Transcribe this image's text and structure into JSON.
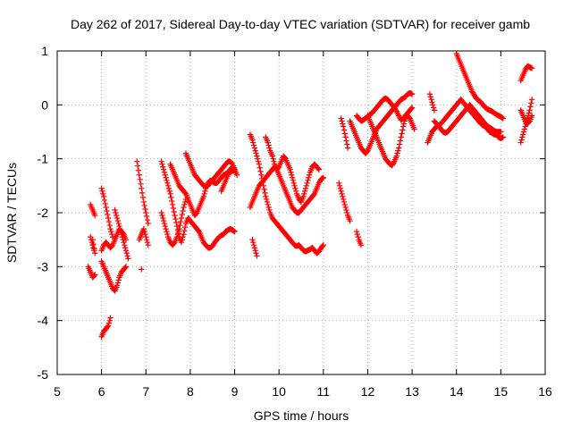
{
  "chart_data": {
    "type": "scatter",
    "title": "Day 262 of 2017, Sidereal Day-to-day VTEC variation (SDTVAR) for receiver gamb",
    "xlabel": "GPS time / hours",
    "ylabel": "SDTVAR / TECUs",
    "xlim": [
      5,
      16
    ],
    "ylim": [
      -5,
      1
    ],
    "xticks": [
      "5",
      "6",
      "7",
      "8",
      "9",
      "10",
      "11",
      "12",
      "13",
      "14",
      "15",
      "16"
    ],
    "yticks": [
      "1",
      "0",
      "-1",
      "-2",
      "-3",
      "-4",
      "-5"
    ],
    "grid": true,
    "marker": "+",
    "marker_color": "#ff0000",
    "series": [
      {
        "name": "s1",
        "x": [
          5.75,
          5.8,
          5.85
        ],
        "y": [
          -1.85,
          -1.95,
          -2.05
        ]
      },
      {
        "name": "s2",
        "x": [
          5.75,
          5.8,
          5.85,
          5.8
        ],
        "y": [
          -2.45,
          -2.6,
          -2.75,
          -2.5
        ]
      },
      {
        "name": "s3",
        "x": [
          5.7,
          5.75,
          5.8,
          5.85
        ],
        "y": [
          -3.0,
          -3.1,
          -3.2,
          -3.15
        ]
      },
      {
        "name": "s4",
        "x": [
          6.0,
          6.05,
          6.1,
          6.15,
          6.2,
          6.25
        ],
        "y": [
          -1.55,
          -1.7,
          -1.9,
          -2.1,
          -2.3,
          -2.45
        ]
      },
      {
        "name": "s5",
        "x": [
          6.0,
          6.05,
          6.1,
          6.15,
          6.2,
          6.25,
          6.3,
          6.35,
          6.4,
          6.45,
          6.5,
          6.55
        ],
        "y": [
          -2.7,
          -2.6,
          -2.55,
          -2.6,
          -2.65,
          -2.6,
          -2.5,
          -2.4,
          -2.3,
          -2.35,
          -2.4,
          -2.5
        ]
      },
      {
        "name": "s6",
        "x": [
          6.0,
          6.05,
          6.1,
          6.15,
          6.2,
          6.25,
          6.3,
          6.35,
          6.4,
          6.45,
          6.5,
          6.55
        ],
        "y": [
          -2.9,
          -3.0,
          -3.1,
          -3.2,
          -3.3,
          -3.4,
          -3.45,
          -3.35,
          -3.2,
          -3.1,
          -3.05,
          -3.0
        ]
      },
      {
        "name": "s7",
        "x": [
          6.0,
          6.05,
          6.1,
          6.15,
          6.2
        ],
        "y": [
          -4.3,
          -4.2,
          -4.15,
          -4.1,
          -3.95
        ]
      },
      {
        "name": "s8",
        "x": [
          6.3,
          6.35,
          6.4,
          6.45,
          6.5,
          6.55,
          6.6
        ],
        "y": [
          -1.95,
          -2.1,
          -2.25,
          -2.4,
          -2.55,
          -2.7,
          -2.85
        ]
      },
      {
        "name": "s9",
        "x": [
          6.8,
          6.85,
          6.9,
          6.95,
          7.0,
          7.05
        ],
        "y": [
          -1.05,
          -1.3,
          -1.55,
          -1.8,
          -2.0,
          -2.2
        ]
      },
      {
        "name": "s10",
        "x": [
          6.85,
          6.9,
          6.95,
          7.0,
          7.05
        ],
        "y": [
          -2.5,
          -2.4,
          -2.3,
          -2.45,
          -2.6
        ]
      },
      {
        "name": "s11",
        "x": [
          6.9
        ],
        "y": [
          -3.05
        ]
      },
      {
        "name": "s12",
        "x": [
          7.35,
          7.4,
          7.45,
          7.5,
          7.55,
          7.6,
          7.65,
          7.7,
          7.75,
          7.8,
          7.85,
          7.9,
          7.95,
          8.0,
          8.05,
          8.1,
          8.15,
          8.2,
          8.25,
          8.3,
          8.35,
          8.4,
          8.45,
          8.5,
          8.55,
          8.6,
          8.65,
          8.7,
          8.75,
          8.8,
          8.85,
          8.9,
          8.95,
          9.0
        ],
        "y": [
          -1.05,
          -1.2,
          -1.35,
          -1.5,
          -1.65,
          -1.85,
          -2.05,
          -2.25,
          -2.45,
          -2.55,
          -2.4,
          -2.2,
          -2.1,
          -2.15,
          -2.2,
          -2.25,
          -2.3,
          -2.35,
          -2.45,
          -2.55,
          -2.6,
          -2.65,
          -2.65,
          -2.62,
          -2.55,
          -2.5,
          -2.45,
          -2.42,
          -2.4,
          -2.35,
          -2.32,
          -2.3,
          -2.32,
          -2.35
        ]
      },
      {
        "name": "s13",
        "x": [
          7.35,
          7.4,
          7.45,
          7.5,
          7.55,
          7.6,
          7.65,
          7.7,
          7.75,
          7.8,
          7.85,
          7.9
        ],
        "y": [
          -2.0,
          -2.15,
          -2.3,
          -2.45,
          -2.55,
          -2.6,
          -2.55,
          -2.45,
          -2.3,
          -2.1,
          -1.9,
          -1.75
        ]
      },
      {
        "name": "s14",
        "x": [
          7.55,
          7.6,
          7.65,
          7.7,
          7.75,
          7.8,
          7.85,
          7.9,
          7.95,
          8.0,
          8.05,
          8.1,
          8.15,
          8.2,
          8.25,
          8.3,
          8.35,
          8.4,
          8.45,
          8.5,
          8.55,
          8.6,
          8.65,
          8.7,
          8.75,
          8.8,
          8.85,
          8.9,
          8.95,
          9.0
        ],
        "y": [
          -1.1,
          -1.2,
          -1.3,
          -1.4,
          -1.5,
          -1.55,
          -1.6,
          -1.65,
          -1.75,
          -1.85,
          -1.95,
          -2.05,
          -2.0,
          -1.9,
          -1.8,
          -1.7,
          -1.55,
          -1.45,
          -1.4,
          -1.42,
          -1.45,
          -1.45,
          -1.4,
          -1.35,
          -1.3,
          -1.28,
          -1.25,
          -1.25,
          -1.22,
          -1.2
        ]
      },
      {
        "name": "s15",
        "x": [
          7.9,
          7.95,
          8.0,
          8.05,
          8.1,
          8.15,
          8.2,
          8.25,
          8.3,
          8.35,
          8.4,
          8.45,
          8.5,
          8.55,
          8.6,
          8.65,
          8.7,
          8.75,
          8.8,
          8.85,
          8.9,
          8.95,
          9.0
        ],
        "y": [
          -0.9,
          -1.0,
          -1.1,
          -1.2,
          -1.3,
          -1.35,
          -1.4,
          -1.45,
          -1.5,
          -1.52,
          -1.5,
          -1.45,
          -1.4,
          -1.35,
          -1.3,
          -1.25,
          -1.2,
          -1.15,
          -1.1,
          -1.05,
          -1.05,
          -1.1,
          -1.2
        ]
      },
      {
        "name": "s16",
        "x": [
          8.7,
          8.75,
          8.8,
          8.85,
          8.9,
          8.95,
          9.0,
          9.05
        ],
        "y": [
          -1.6,
          -1.5,
          -1.4,
          -1.3,
          -1.2,
          -1.15,
          -1.2,
          -1.3
        ]
      },
      {
        "name": "s17",
        "x": [
          9.35,
          9.4,
          9.45,
          9.5,
          9.55,
          9.6,
          9.65,
          9.7,
          9.75,
          9.8,
          9.85,
          9.9,
          9.95,
          10.0,
          10.05,
          10.1,
          10.15,
          10.2,
          10.25,
          10.3,
          10.35,
          10.4,
          10.45,
          10.5,
          10.55,
          10.6,
          10.65,
          10.7,
          10.75,
          10.8,
          10.85,
          10.9,
          10.95,
          11.0
        ],
        "y": [
          -0.55,
          -0.65,
          -0.8,
          -0.95,
          -1.1,
          -1.3,
          -1.5,
          -1.7,
          -1.85,
          -2.0,
          -2.1,
          -2.15,
          -2.2,
          -2.25,
          -2.3,
          -2.35,
          -2.4,
          -2.45,
          -2.5,
          -2.55,
          -2.6,
          -2.62,
          -2.6,
          -2.65,
          -2.7,
          -2.72,
          -2.7,
          -2.68,
          -2.65,
          -2.7,
          -2.75,
          -2.72,
          -2.65,
          -2.6
        ]
      },
      {
        "name": "s18",
        "x": [
          9.35,
          9.4,
          9.45,
          9.5,
          9.55,
          9.6,
          9.65,
          9.7,
          9.75,
          9.8,
          9.85,
          9.9,
          9.95,
          10.0,
          10.05,
          10.1,
          10.15,
          10.2,
          10.25,
          10.3,
          10.35,
          10.4,
          10.45,
          10.5,
          10.55,
          10.6,
          10.65,
          10.7,
          10.75,
          10.8,
          10.85,
          10.9,
          10.95,
          11.0
        ],
        "y": [
          -1.9,
          -1.8,
          -1.7,
          -1.6,
          -1.5,
          -1.45,
          -1.4,
          -1.35,
          -1.3,
          -1.25,
          -1.2,
          -1.15,
          -1.2,
          -1.3,
          -1.4,
          -1.5,
          -1.6,
          -1.7,
          -1.8,
          -1.9,
          -1.95,
          -2.0,
          -2.0,
          -1.95,
          -1.9,
          -1.85,
          -1.8,
          -1.75,
          -1.7,
          -1.65,
          -1.55,
          -1.45,
          -1.38,
          -1.35
        ]
      },
      {
        "name": "s19",
        "x": [
          9.7,
          9.75,
          9.8,
          9.85,
          9.9,
          9.95,
          10.0,
          10.05,
          10.1,
          10.15,
          10.2,
          10.25,
          10.3,
          10.35,
          10.4,
          10.45,
          10.5,
          10.55,
          10.6,
          10.65,
          10.7,
          10.75,
          10.8,
          10.85,
          10.9
        ],
        "y": [
          -0.6,
          -0.7,
          -0.85,
          -0.95,
          -1.1,
          -1.2,
          -1.15,
          -1.05,
          -0.95,
          -1.0,
          -1.1,
          -1.2,
          -1.35,
          -1.5,
          -1.65,
          -1.75,
          -1.8,
          -1.7,
          -1.55,
          -1.4,
          -1.25,
          -1.15,
          -1.1,
          -1.15,
          -1.2
        ]
      },
      {
        "name": "s20",
        "x": [
          9.4,
          9.45,
          9.5
        ],
        "y": [
          -2.5,
          -2.65,
          -2.8
        ]
      },
      {
        "name": "s21",
        "x": [
          11.35,
          11.4,
          11.45,
          11.5,
          11.55,
          11.6
        ],
        "y": [
          -1.45,
          -1.6,
          -1.75,
          -1.9,
          -2.05,
          -2.15
        ]
      },
      {
        "name": "s22",
        "x": [
          11.4,
          11.45,
          11.5,
          11.55
        ],
        "y": [
          -0.25,
          -0.4,
          -0.6,
          -0.8
        ]
      },
      {
        "name": "s23",
        "x": [
          11.6,
          11.65,
          11.7,
          11.75,
          11.8,
          11.85,
          11.9,
          11.95,
          12.0,
          12.05,
          12.1,
          12.15,
          12.2,
          12.25,
          12.3,
          12.35,
          12.4,
          12.45,
          12.5,
          12.55,
          12.6,
          12.65,
          12.7,
          12.75,
          12.8,
          12.85,
          12.9,
          12.95,
          13.0
        ],
        "y": [
          -0.3,
          -0.4,
          -0.5,
          -0.6,
          -0.7,
          -0.8,
          -0.85,
          -0.9,
          -0.85,
          -0.75,
          -0.65,
          -0.55,
          -0.45,
          -0.4,
          -0.35,
          -0.3,
          -0.25,
          -0.2,
          -0.15,
          -0.1,
          -0.05,
          0.0,
          0.05,
          0.1,
          0.12,
          0.15,
          0.2,
          0.22,
          0.2
        ]
      },
      {
        "name": "s24",
        "x": [
          11.75,
          11.8,
          11.85,
          11.9,
          11.95,
          12.0,
          12.05,
          12.1,
          12.15,
          12.2,
          12.25,
          12.3,
          12.35,
          12.4,
          12.45,
          12.5,
          12.55,
          12.6,
          12.65,
          12.7,
          12.75,
          12.8,
          12.85,
          12.9,
          12.95,
          13.0
        ],
        "y": [
          -0.2,
          -0.25,
          -0.3,
          -0.28,
          -0.25,
          -0.22,
          -0.18,
          -0.15,
          -0.1,
          -0.05,
          0.0,
          0.05,
          0.1,
          0.12,
          0.1,
          0.05,
          0.0,
          -0.05,
          -0.12,
          -0.2,
          -0.28,
          -0.25,
          -0.2,
          -0.15,
          -0.1,
          -0.05
        ]
      },
      {
        "name": "s25",
        "x": [
          12.0,
          12.05,
          12.1,
          12.15,
          12.2,
          12.25,
          12.3,
          12.35,
          12.4,
          12.45,
          12.5,
          12.55,
          12.6,
          12.65,
          12.7,
          12.75,
          12.8,
          12.85,
          12.9,
          12.95,
          13.0,
          13.05
        ],
        "y": [
          -0.2,
          -0.3,
          -0.4,
          -0.5,
          -0.6,
          -0.7,
          -0.8,
          -0.9,
          -1.0,
          -1.05,
          -1.1,
          -1.12,
          -1.05,
          -0.95,
          -0.8,
          -0.6,
          -0.4,
          -0.25,
          -0.2,
          -0.25,
          -0.35,
          -0.45
        ]
      },
      {
        "name": "s26",
        "x": [
          11.75,
          11.8,
          11.85
        ],
        "y": [
          -2.35,
          -2.5,
          -2.6
        ]
      },
      {
        "name": "s27",
        "x": [
          13.35,
          13.4,
          13.45,
          13.5,
          13.55,
          13.6,
          13.65,
          13.7,
          13.75,
          13.8,
          13.85,
          13.9,
          13.95,
          14.0,
          14.05,
          14.1,
          14.15,
          14.2,
          14.25,
          14.3,
          14.35,
          14.4,
          14.45,
          14.5,
          14.55,
          14.6,
          14.65,
          14.7,
          14.75,
          14.8,
          14.85,
          14.9,
          14.95,
          15.0,
          15.05
        ],
        "y": [
          -0.7,
          -0.6,
          -0.5,
          -0.45,
          -0.4,
          -0.38,
          -0.35,
          -0.3,
          -0.25,
          -0.2,
          -0.15,
          -0.1,
          -0.05,
          0.0,
          0.05,
          0.1,
          0.05,
          0.0,
          -0.05,
          -0.1,
          -0.15,
          -0.2,
          -0.25,
          -0.3,
          -0.35,
          -0.38,
          -0.4,
          -0.45,
          -0.5,
          -0.52,
          -0.55,
          -0.55,
          -0.6,
          -0.62,
          -0.6
        ]
      },
      {
        "name": "s28",
        "x": [
          13.5,
          13.55,
          13.6,
          13.65,
          13.7,
          13.75,
          13.8,
          13.85,
          13.9,
          13.95,
          14.0,
          14.05,
          14.1,
          14.15,
          14.2,
          14.25,
          14.3,
          14.35,
          14.4,
          14.45,
          14.5,
          14.55,
          14.6,
          14.65,
          14.7,
          14.75,
          14.8,
          14.85,
          14.9,
          14.95,
          15.0
        ],
        "y": [
          -0.3,
          -0.35,
          -0.4,
          -0.45,
          -0.5,
          -0.52,
          -0.5,
          -0.45,
          -0.4,
          -0.35,
          -0.3,
          -0.25,
          -0.2,
          -0.15,
          -0.1,
          -0.05,
          0.0,
          -0.05,
          -0.1,
          -0.15,
          -0.2,
          -0.25,
          -0.3,
          -0.35,
          -0.4,
          -0.42,
          -0.45,
          -0.48,
          -0.5,
          -0.5,
          -0.5
        ]
      },
      {
        "name": "s29",
        "x": [
          14.0,
          14.05,
          14.1,
          14.15,
          14.2,
          14.25,
          14.3,
          14.35,
          14.4,
          14.45,
          14.5,
          14.55,
          14.6,
          14.65,
          14.7,
          14.75,
          14.8,
          14.85,
          14.9,
          14.95,
          15.0,
          15.05
        ],
        "y": [
          0.95,
          0.85,
          0.75,
          0.65,
          0.55,
          0.45,
          0.35,
          0.25,
          0.18,
          0.12,
          0.08,
          0.05,
          0.0,
          -0.05,
          -0.08,
          -0.1,
          -0.12,
          -0.15,
          -0.18,
          -0.2,
          -0.22,
          -0.25
        ]
      },
      {
        "name": "s30",
        "x": [
          13.4,
          13.45,
          13.5
        ],
        "y": [
          0.2,
          0.05,
          -0.1
        ]
      },
      {
        "name": "s31",
        "x": [
          15.45,
          15.5,
          15.55,
          15.6,
          15.65,
          15.7
        ],
        "y": [
          0.45,
          0.55,
          0.65,
          0.72,
          0.7,
          0.68
        ]
      },
      {
        "name": "s32",
        "x": [
          15.45,
          15.5,
          15.55,
          15.6,
          15.65,
          15.7
        ],
        "y": [
          -0.7,
          -0.55,
          -0.4,
          -0.25,
          -0.1,
          0.1
        ]
      },
      {
        "name": "s33",
        "x": [
          15.45,
          15.5,
          15.55,
          15.6,
          15.65,
          15.7
        ],
        "y": [
          -0.1,
          -0.2,
          -0.3,
          -0.35,
          -0.3,
          -0.2
        ]
      }
    ]
  }
}
